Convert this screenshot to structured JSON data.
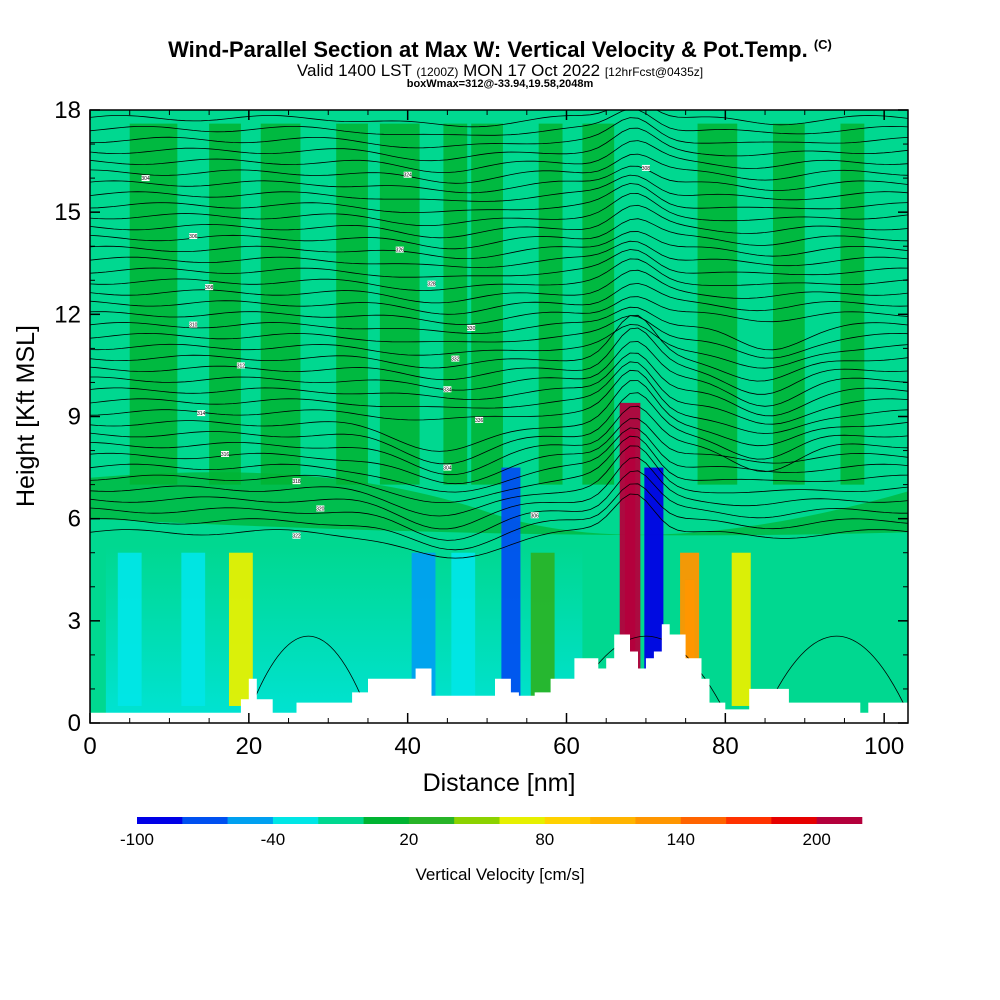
{
  "chart_data": {
    "type": "heatmap",
    "title": "Wind-Parallel Section at Max W: Vertical Velocity & Pot.Temp.",
    "title_mark": "(C)",
    "subtitle": {
      "main": "Valid 1400 LST",
      "utc": "(1200Z)",
      "date": "MON 17 Oct 2022",
      "fcst": "[12hrFcst@0435z]"
    },
    "box_note": "boxWmax=312@-33.94,19.58,2048m",
    "xlabel": "Distance [nm]",
    "ylabel": "Height [Kft MSL]",
    "xlim": [
      0,
      103
    ],
    "ylim": [
      0,
      18
    ],
    "x_ticks": [
      "0",
      "20",
      "40",
      "60",
      "80",
      "100"
    ],
    "y_ticks": [
      "0",
      "3",
      "6",
      "9",
      "12",
      "15",
      "18"
    ],
    "colorbar": {
      "label": "Vertical Velocity [cm/s]",
      "tick_labels": [
        "-100",
        "-40",
        "20",
        "80",
        "140",
        "200"
      ],
      "colors": [
        "#0000e6",
        "#0050f0",
        "#00a0f0",
        "#00e6e6",
        "#00d890",
        "#00b432",
        "#28b428",
        "#8cd200",
        "#e6f000",
        "#ffd200",
        "#ffb400",
        "#ff9600",
        "#ff6400",
        "#ff3200",
        "#e60000",
        "#b4003c"
      ]
    },
    "fields": {
      "vertical_velocity": [
        {
          "x": 5,
          "w": -30
        },
        {
          "x": 13,
          "w": -30
        },
        {
          "x": 19,
          "w": 60
        },
        {
          "x": 42,
          "w": -60
        },
        {
          "x": 47,
          "w": -35
        },
        {
          "x": 53,
          "w": -80
        },
        {
          "x": 57,
          "w": 20
        },
        {
          "x": 68,
          "w": 312
        },
        {
          "x": 71,
          "w": -100
        },
        {
          "x": 75.5,
          "w": 120
        },
        {
          "x": 82,
          "w": 70
        }
      ],
      "potential_temperature_contour_labels": [
        "304",
        "306",
        "308",
        "310",
        "312",
        "314",
        "316",
        "318",
        "320",
        "322",
        "324",
        "326",
        "328",
        "330",
        "332",
        "334",
        "336"
      ]
    }
  }
}
